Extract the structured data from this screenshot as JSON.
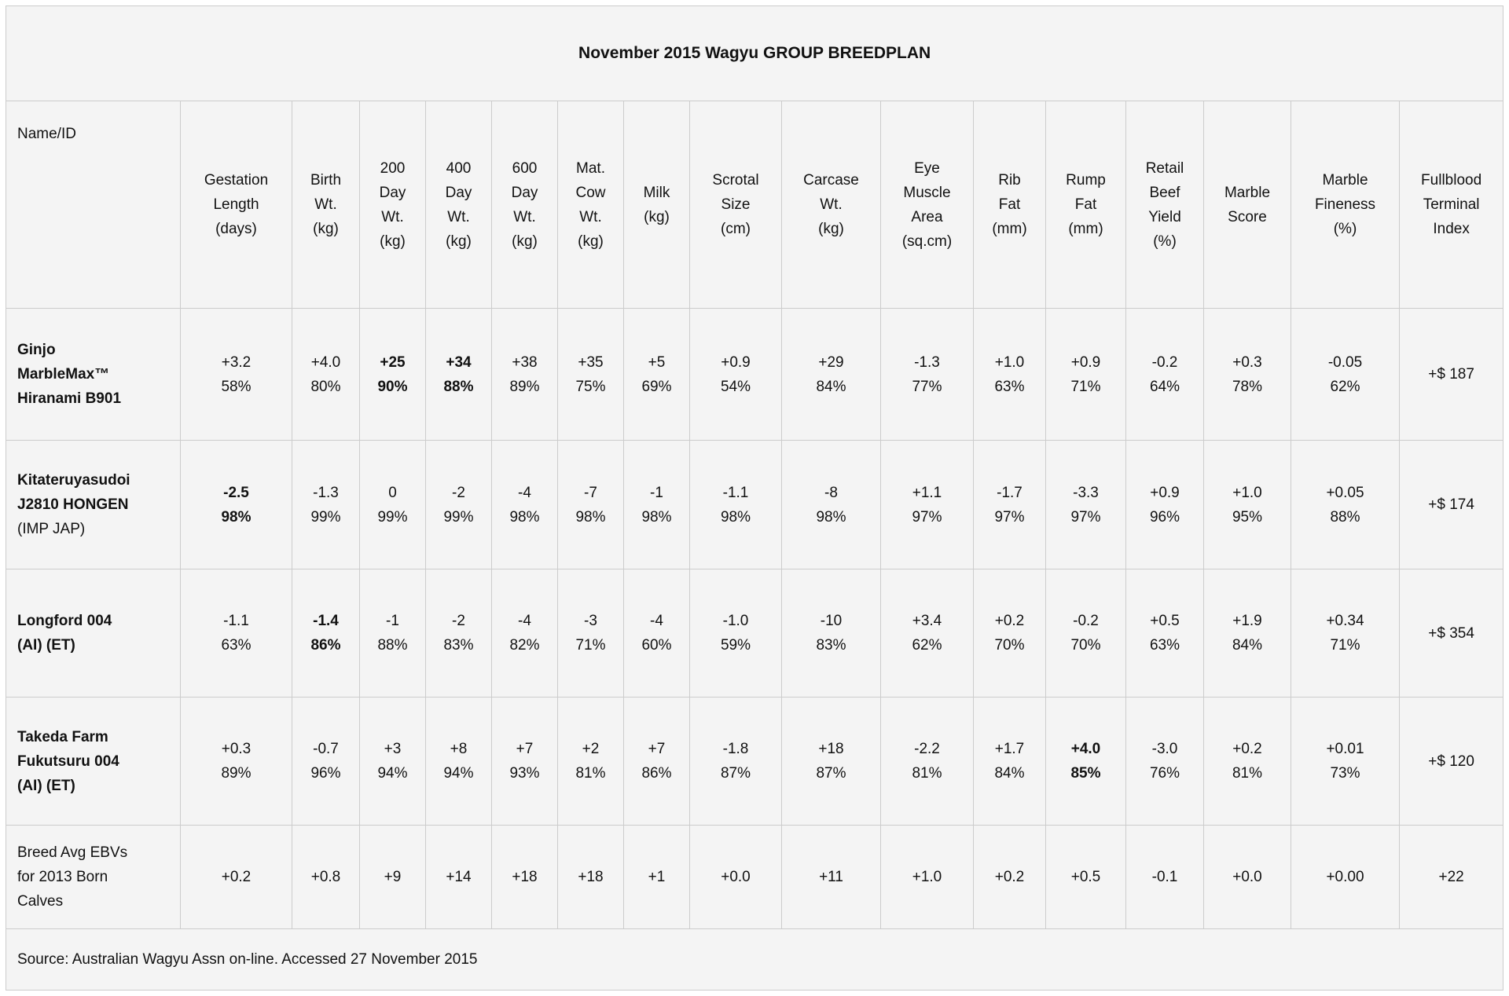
{
  "title": "November 2015 Wagyu GROUP BREEDPLAN",
  "source_note": "Source: Australian Wagyu Assn on-line. Accessed 27 November 2015",
  "colors": {
    "cell_bg": "#f4f4f4",
    "border": "#cccccc",
    "text": "#111111"
  },
  "table": {
    "columns": [
      {
        "key": "name-id",
        "lines": [
          "Name/ID"
        ]
      },
      {
        "key": "gestation-length",
        "lines": [
          "Gestation",
          "Length",
          "(days)"
        ]
      },
      {
        "key": "birth-wt",
        "lines": [
          "Birth",
          "Wt.",
          "(kg)"
        ]
      },
      {
        "key": "200-day-wt",
        "lines": [
          "200",
          "Day",
          "Wt.",
          "(kg)"
        ]
      },
      {
        "key": "400-day-wt",
        "lines": [
          "400",
          "Day",
          "Wt.",
          "(kg)"
        ]
      },
      {
        "key": "600-day-wt",
        "lines": [
          "600",
          "Day",
          "Wt.",
          "(kg)"
        ]
      },
      {
        "key": "mat-cow-wt",
        "lines": [
          "Mat.",
          "Cow",
          "Wt.",
          "(kg)"
        ]
      },
      {
        "key": "milk",
        "lines": [
          "Milk",
          "(kg)"
        ]
      },
      {
        "key": "scrotal-size",
        "lines": [
          "Scrotal",
          "Size",
          "(cm)"
        ]
      },
      {
        "key": "carcase-wt",
        "lines": [
          "Carcase",
          "Wt.",
          "(kg)"
        ]
      },
      {
        "key": "eye-muscle-area",
        "lines": [
          "Eye",
          "Muscle",
          "Area",
          "(sq.cm)"
        ]
      },
      {
        "key": "rib-fat",
        "lines": [
          "Rib",
          "Fat",
          "(mm)"
        ]
      },
      {
        "key": "rump-fat",
        "lines": [
          "Rump",
          "Fat",
          "(mm)"
        ]
      },
      {
        "key": "retail-beef-yield",
        "lines": [
          "Retail",
          "Beef",
          "Yield",
          "(%)"
        ]
      },
      {
        "key": "marble-score",
        "lines": [
          "Marble",
          "Score"
        ]
      },
      {
        "key": "marble-fineness",
        "lines": [
          "Marble",
          "Fineness",
          "(%)"
        ]
      },
      {
        "key": "fullblood-terminal-index",
        "lines": [
          "Fullblood",
          "Terminal",
          "Index"
        ]
      }
    ],
    "rows": [
      {
        "name_lines": [
          {
            "t": "Ginjo",
            "b": true
          },
          {
            "t": "MarbleMax™",
            "b": true
          },
          {
            "t": "Hiranami B901",
            "b": true
          }
        ],
        "cells": [
          {
            "v": "+3.2",
            "acc": "58%",
            "b": false
          },
          {
            "v": "+4.0",
            "acc": "80%",
            "b": false
          },
          {
            "v": "+25",
            "acc": "90%",
            "b": true
          },
          {
            "v": "+34",
            "acc": "88%",
            "b": true
          },
          {
            "v": "+38",
            "acc": "89%",
            "b": false
          },
          {
            "v": "+35",
            "acc": "75%",
            "b": false
          },
          {
            "v": "+5",
            "acc": "69%",
            "b": false
          },
          {
            "v": "+0.9",
            "acc": "54%",
            "b": false
          },
          {
            "v": "+29",
            "acc": "84%",
            "b": false
          },
          {
            "v": "-1.3",
            "acc": "77%",
            "b": false
          },
          {
            "v": "+1.0",
            "acc": "63%",
            "b": false
          },
          {
            "v": "+0.9",
            "acc": "71%",
            "b": false
          },
          {
            "v": "-0.2",
            "acc": "64%",
            "b": false
          },
          {
            "v": "+0.3",
            "acc": "78%",
            "b": false
          },
          {
            "v": "-0.05",
            "acc": "62%",
            "b": false
          },
          {
            "v": "+$ 187",
            "acc": "",
            "b": false
          }
        ]
      },
      {
        "name_lines": [
          {
            "t": "Kitateruyasudoi",
            "b": true
          },
          {
            "t": "J2810 HONGEN",
            "b": true
          },
          {
            "t": "(IMP JAP)",
            "b": false
          }
        ],
        "cells": [
          {
            "v": "-2.5",
            "acc": "98%",
            "b": true
          },
          {
            "v": "-1.3",
            "acc": "99%",
            "b": false
          },
          {
            "v": "0",
            "acc": "99%",
            "b": false
          },
          {
            "v": "-2",
            "acc": "99%",
            "b": false
          },
          {
            "v": "-4",
            "acc": "98%",
            "b": false
          },
          {
            "v": "-7",
            "acc": "98%",
            "b": false
          },
          {
            "v": "-1",
            "acc": "98%",
            "b": false
          },
          {
            "v": "-1.1",
            "acc": "98%",
            "b": false
          },
          {
            "v": "-8",
            "acc": "98%",
            "b": false
          },
          {
            "v": "+1.1",
            "acc": "97%",
            "b": false
          },
          {
            "v": "-1.7",
            "acc": "97%",
            "b": false
          },
          {
            "v": "-3.3",
            "acc": "97%",
            "b": false
          },
          {
            "v": "+0.9",
            "acc": "96%",
            "b": false
          },
          {
            "v": "+1.0",
            "acc": "95%",
            "b": false
          },
          {
            "v": "+0.05",
            "acc": "88%",
            "b": false
          },
          {
            "v": "+$ 174",
            "acc": "",
            "b": false
          }
        ]
      },
      {
        "name_lines": [
          {
            "t": "Longford 004",
            "b": true
          },
          {
            "t": "(AI) (ET)",
            "b": true
          }
        ],
        "cells": [
          {
            "v": "-1.1",
            "acc": "63%",
            "b": false
          },
          {
            "v": "-1.4",
            "acc": "86%",
            "b": true
          },
          {
            "v": "-1",
            "acc": "88%",
            "b": false
          },
          {
            "v": "-2",
            "acc": "83%",
            "b": false
          },
          {
            "v": "-4",
            "acc": "82%",
            "b": false
          },
          {
            "v": "-3",
            "acc": "71%",
            "b": false
          },
          {
            "v": "-4",
            "acc": "60%",
            "b": false
          },
          {
            "v": "-1.0",
            "acc": "59%",
            "b": false
          },
          {
            "v": "-10",
            "acc": "83%",
            "b": false
          },
          {
            "v": "+3.4",
            "acc": "62%",
            "b": false
          },
          {
            "v": "+0.2",
            "acc": "70%",
            "b": false
          },
          {
            "v": "-0.2",
            "acc": "70%",
            "b": false
          },
          {
            "v": "+0.5",
            "acc": "63%",
            "b": false
          },
          {
            "v": "+1.9",
            "acc": "84%",
            "b": false
          },
          {
            "v": "+0.34",
            "acc": "71%",
            "b": false
          },
          {
            "v": "+$ 354",
            "acc": "",
            "b": false
          }
        ]
      },
      {
        "name_lines": [
          {
            "t": "Takeda Farm",
            "b": true
          },
          {
            "t": "Fukutsuru 004",
            "b": true
          },
          {
            "t": "(AI) (ET)",
            "b": true
          }
        ],
        "cells": [
          {
            "v": "+0.3",
            "acc": "89%",
            "b": false
          },
          {
            "v": "-0.7",
            "acc": "96%",
            "b": false
          },
          {
            "v": "+3",
            "acc": "94%",
            "b": false
          },
          {
            "v": "+8",
            "acc": "94%",
            "b": false
          },
          {
            "v": "+7",
            "acc": "93%",
            "b": false
          },
          {
            "v": "+2",
            "acc": "81%",
            "b": false
          },
          {
            "v": "+7",
            "acc": "86%",
            "b": false
          },
          {
            "v": "-1.8",
            "acc": "87%",
            "b": false
          },
          {
            "v": "+18",
            "acc": "87%",
            "b": false
          },
          {
            "v": "-2.2",
            "acc": "81%",
            "b": false
          },
          {
            "v": "+1.7",
            "acc": "84%",
            "b": false
          },
          {
            "v": "+4.0",
            "acc": "85%",
            "b": true
          },
          {
            "v": "-3.0",
            "acc": "76%",
            "b": false
          },
          {
            "v": "+0.2",
            "acc": "81%",
            "b": false
          },
          {
            "v": "+0.01",
            "acc": "73%",
            "b": false
          },
          {
            "v": "+$ 120",
            "acc": "",
            "b": false
          }
        ]
      },
      {
        "name_lines": [
          {
            "t": "Breed Avg EBVs",
            "b": false
          },
          {
            "t": "for 2013 Born",
            "b": false
          },
          {
            "t": "Calves",
            "b": false
          }
        ],
        "cells": [
          {
            "v": "+0.2",
            "acc": "",
            "b": false
          },
          {
            "v": "+0.8",
            "acc": "",
            "b": false
          },
          {
            "v": "+9",
            "acc": "",
            "b": false
          },
          {
            "v": "+14",
            "acc": "",
            "b": false
          },
          {
            "v": "+18",
            "acc": "",
            "b": false
          },
          {
            "v": "+18",
            "acc": "",
            "b": false
          },
          {
            "v": "+1",
            "acc": "",
            "b": false
          },
          {
            "v": "+0.0",
            "acc": "",
            "b": false
          },
          {
            "v": "+11",
            "acc": "",
            "b": false
          },
          {
            "v": "+1.0",
            "acc": "",
            "b": false
          },
          {
            "v": "+0.2",
            "acc": "",
            "b": false
          },
          {
            "v": "+0.5",
            "acc": "",
            "b": false
          },
          {
            "v": "-0.1",
            "acc": "",
            "b": false
          },
          {
            "v": "+0.0",
            "acc": "",
            "b": false
          },
          {
            "v": "+0.00",
            "acc": "",
            "b": false
          },
          {
            "v": "+22",
            "acc": "",
            "b": false
          }
        ]
      }
    ]
  }
}
